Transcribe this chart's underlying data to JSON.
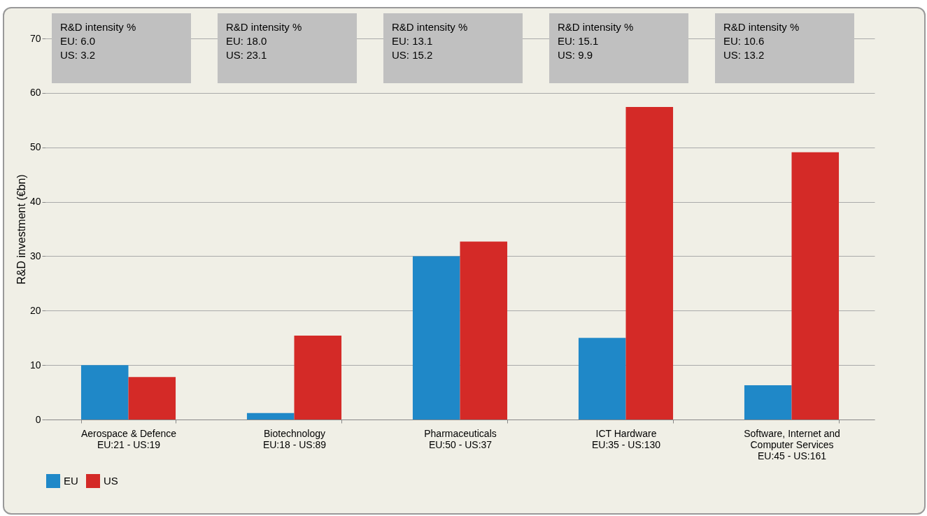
{
  "chart_data": {
    "type": "bar",
    "ylabel": "R&D investment (€bn)",
    "categories": [
      "Aerospace & Defence\nEU:21 - US:19",
      "Biotechnology\nEU:18 - US:89",
      "Pharmaceuticals\nEU:50 - US:37",
      "ICT Hardware\nEU:35 - US:130",
      "Software, Internet and\nComputer Services\nEU:45 - US:161"
    ],
    "series": [
      {
        "name": "EU",
        "color": "#1f88c8",
        "values": [
          10,
          1.2,
          30,
          15,
          6.3
        ]
      },
      {
        "name": "US",
        "color": "#d42a27",
        "values": [
          7.8,
          15.4,
          32.7,
          57.4,
          49.1
        ]
      }
    ],
    "ylim": [
      0,
      70
    ],
    "yticks": [
      0,
      10,
      20,
      30,
      40,
      50,
      60,
      70
    ],
    "grid": "y",
    "legend": "bottom",
    "annotations": [
      "R&D intensity %\nEU: 6.0\nUS: 3.2",
      "R&D intensity %\nEU: 18.0\nUS: 23.1",
      "R&D intensity %\nEU: 13.1\nUS: 15.2",
      "R&D intensity %\nEU: 15.1\nUS: 9.9",
      "R&D intensity %\nEU: 10.6\nUS: 13.2"
    ]
  }
}
